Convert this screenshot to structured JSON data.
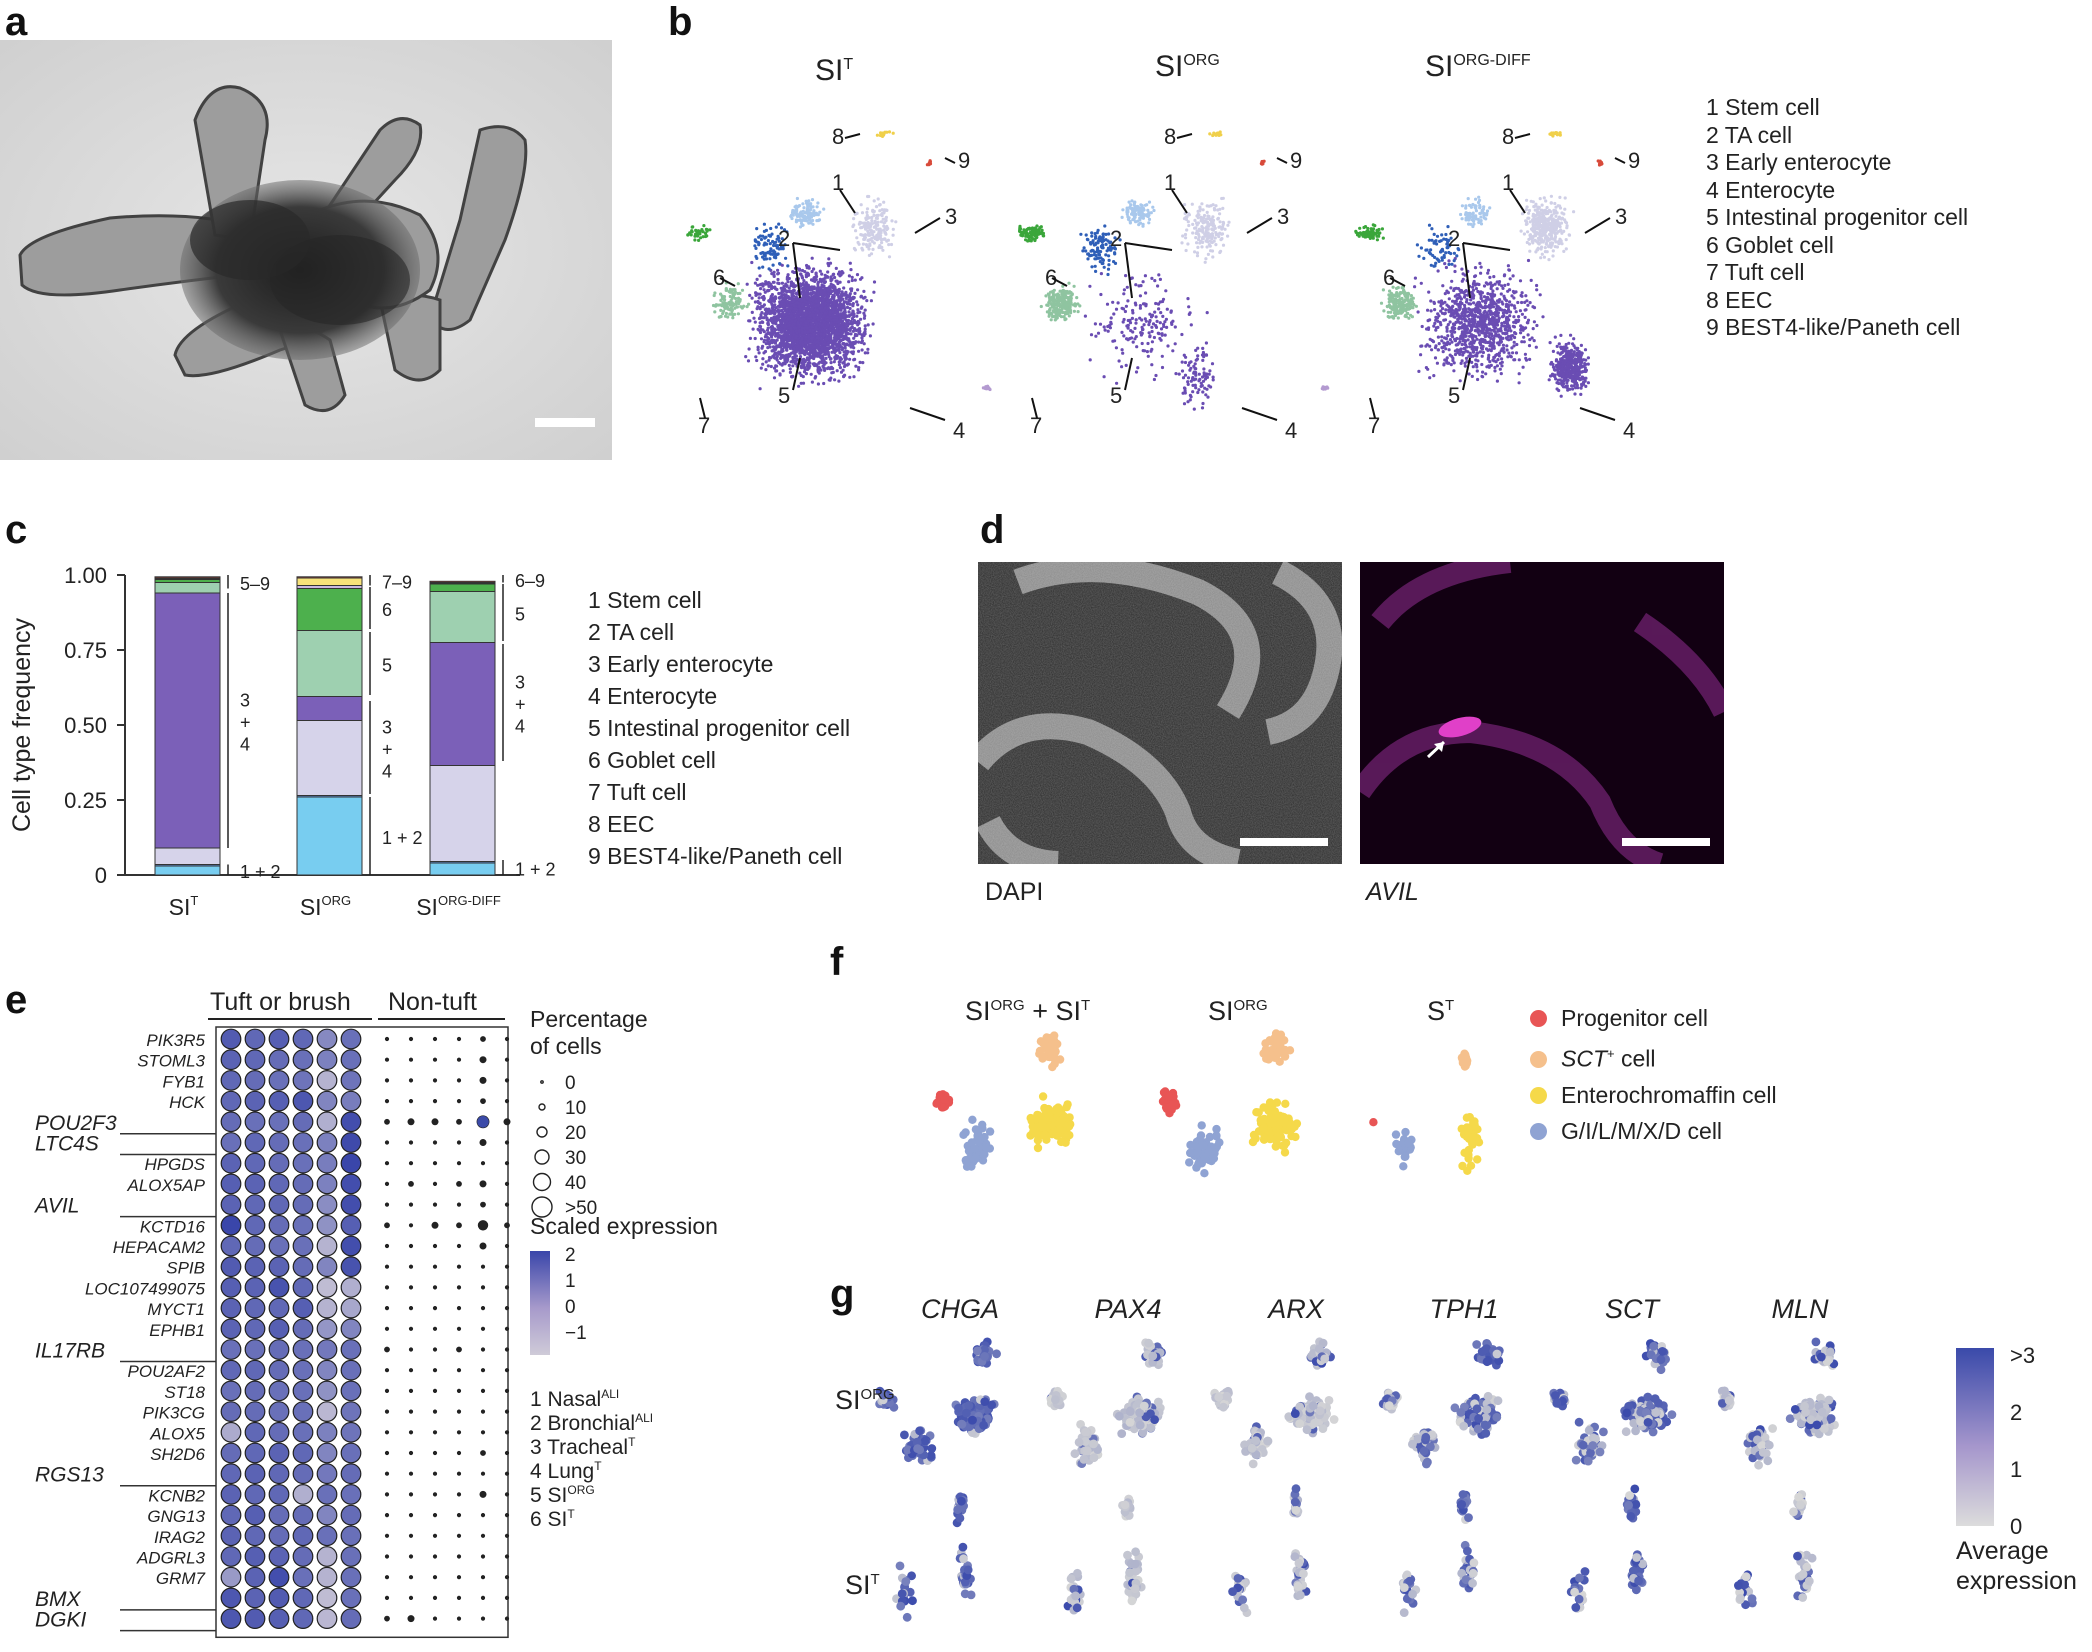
{
  "panels": {
    "a": "a",
    "b": "b",
    "c": "c",
    "d": "d",
    "e": "e",
    "f": "f",
    "g": "g"
  },
  "panel_b": {
    "umaps": [
      {
        "base": "SI",
        "sup": "T",
        "num_labels": [
          "1",
          "2",
          "3",
          "4",
          "5",
          "6",
          "7",
          "8",
          "9"
        ]
      },
      {
        "base": "SI",
        "sup": "ORG",
        "num_labels": [
          "1",
          "2",
          "3",
          "4",
          "5",
          "6",
          "7",
          "8",
          "9"
        ]
      },
      {
        "base": "SI",
        "sup": "ORG-DIFF",
        "num_labels": [
          "1",
          "2",
          "3",
          "4",
          "5",
          "6",
          "7",
          "8",
          "9"
        ]
      }
    ],
    "legend": [
      "1 Stem cell",
      "2 TA cell",
      "3 Early enterocyte",
      "4 Enterocyte",
      "5 Intestinal progenitor cell",
      "6 Goblet cell",
      "7 Tuft cell",
      "8 EEC",
      "9 BEST4-like/Paneth cell"
    ],
    "colors": {
      "stem": "#a9c8ec",
      "ta": "#2f5fb8",
      "early_enterocyte": "#cfcfe6",
      "enterocyte": "#6a4db3",
      "progenitor": "#8fc4a0",
      "goblet": "#3aa63a",
      "tuft": "#b39ad0",
      "eec": "#f0d04a",
      "best4": "#d84a3a"
    }
  },
  "chart_data": [
    {
      "type": "bar",
      "stacked": true,
      "title": "",
      "ylabel": "Cell type frequency",
      "ylim": [
        0,
        1.0
      ],
      "yticks": [
        "0",
        "0.25",
        "0.50",
        "0.75",
        "1.00"
      ],
      "categories": [
        {
          "base": "SI",
          "sup": "T"
        },
        {
          "base": "SI",
          "sup": "ORG"
        },
        {
          "base": "SI",
          "sup": "ORG-DIFF"
        }
      ],
      "series": [
        {
          "name": "1 Stem cell",
          "color": "#78cdf0",
          "values": [
            0.03,
            0.26,
            0.04
          ]
        },
        {
          "name": "2 TA cell",
          "color": "#5b8fd6",
          "values": [
            0.005,
            0.005,
            0.005
          ]
        },
        {
          "name": "3 Early enterocyte",
          "color": "#d6d3ea",
          "values": [
            0.055,
            0.25,
            0.32
          ]
        },
        {
          "name": "4 Enterocyte",
          "color": "#7b60b8",
          "values": [
            0.85,
            0.08,
            0.41
          ]
        },
        {
          "name": "5 Intestinal progenitor cell",
          "color": "#9ed0b0",
          "values": [
            0.035,
            0.22,
            0.17
          ]
        },
        {
          "name": "6 Goblet cell",
          "color": "#4db04d",
          "values": [
            0.01,
            0.14,
            0.025
          ]
        },
        {
          "name": "7 Tuft cell",
          "color": "#c9b8e0",
          "values": [
            0.003,
            0.01,
            0.003
          ]
        },
        {
          "name": "8 EEC",
          "color": "#f7e27a",
          "values": [
            0.002,
            0.025,
            0.002
          ]
        },
        {
          "name": "9 BEST4-like/Paneth cell",
          "color": "#d84a3a",
          "values": [
            0.004,
            0.004,
            0.004
          ]
        }
      ],
      "bracket_labels": [
        [
          "5–9",
          "3\n+\n4",
          "1 + 2"
        ],
        [
          "7–9",
          "6",
          "5",
          "3\n+\n4",
          "1 + 2"
        ],
        [
          "6–9",
          "5",
          "3\n+\n4",
          "1 + 2"
        ]
      ],
      "legend": [
        "1 Stem cell",
        "2 TA cell",
        "3 Early enterocyte",
        "4 Enterocyte",
        "5 Intestinal progenitor cell",
        "6 Goblet cell",
        "7 Tuft cell",
        "8 EEC",
        "9 BEST4-like/Paneth cell"
      ]
    },
    {
      "type": "heatmap",
      "title": "",
      "group_headers": [
        "Tuft or brush",
        "Non-tuft"
      ],
      "genes": [
        "PIK3R5",
        "STOML3",
        "FYB1",
        "HCK",
        "POU2F3",
        "LTC4S",
        "HPGDS",
        "ALOX5AP",
        "AVIL",
        "KCTD16",
        "HEPACAM2",
        "SPIB",
        "LOC107499075",
        "MYCT1",
        "EPHB1",
        "IL17RB",
        "POU2AF2",
        "ST18",
        "PIK3CG",
        "ALOX5",
        "SH2D6",
        "RGS13",
        "KCNB2",
        "GNG13",
        "IRAG2",
        "ADGRL3",
        "GRM7",
        "BMX",
        "DGKI"
      ],
      "gene_labels_outer": [
        "POU2F3",
        "LTC4S",
        "AVIL",
        "IL17RB",
        "RGS13",
        "BMX",
        "DGKI"
      ],
      "columns_tuft": [
        "1",
        "2",
        "3",
        "4",
        "5",
        "6"
      ],
      "columns_nontuft": [
        "1",
        "2",
        "3",
        "4",
        "5",
        "6"
      ],
      "size_legend_title": "Percentage\nof cells",
      "size_legend": [
        "0",
        "10",
        "20",
        "30",
        "40",
        ">50"
      ],
      "color_legend_title": "Scaled expression",
      "color_legend_ticks": [
        "2",
        "1",
        "0",
        "−1"
      ],
      "sample_legend": [
        {
          "base": "1 Nasal",
          "sup": "ALI"
        },
        {
          "base": "2 Bronchial",
          "sup": "ALI"
        },
        {
          "base": "3 Tracheal",
          "sup": "T"
        },
        {
          "base": "4 Lung",
          "sup": "T"
        },
        {
          "base": "5 SI",
          "sup": "ORG"
        },
        {
          "base": "6 SI",
          "sup": "T"
        }
      ],
      "tuft_expression": [
        [
          1.5,
          1.2,
          1.4,
          1.2,
          0.4,
          1.0
        ],
        [
          1.3,
          1.2,
          1.1,
          1.0,
          0.6,
          1.0
        ],
        [
          1.2,
          1.1,
          1.0,
          0.9,
          -0.6,
          0.9
        ],
        [
          1.2,
          1.3,
          1.4,
          1.6,
          0.5,
          0.7
        ],
        [
          1.1,
          1.0,
          1.0,
          1.1,
          -0.5,
          1.8
        ],
        [
          1.0,
          1.2,
          1.1,
          1.0,
          0.6,
          1.9
        ],
        [
          1.3,
          1.2,
          1.1,
          1.0,
          0.7,
          2.0
        ],
        [
          1.4,
          1.3,
          1.2,
          1.1,
          0.6,
          1.8
        ],
        [
          1.3,
          1.2,
          1.2,
          1.1,
          0.3,
          1.8
        ],
        [
          2.0,
          1.2,
          1.1,
          1.0,
          0.2,
          1.4
        ],
        [
          1.2,
          1.1,
          1.0,
          1.0,
          -0.6,
          1.8
        ],
        [
          1.5,
          1.3,
          1.3,
          1.1,
          0.5,
          1.7
        ],
        [
          1.4,
          1.3,
          1.7,
          1.2,
          -0.8,
          -0.5
        ],
        [
          1.3,
          1.2,
          1.2,
          1.4,
          -0.6,
          -0.3
        ],
        [
          1.3,
          1.2,
          1.4,
          1.1,
          0.1,
          0.5
        ],
        [
          1.0,
          1.0,
          1.1,
          1.0,
          0.8,
          1.0
        ],
        [
          1.2,
          1.2,
          1.1,
          1.0,
          0.5,
          1.0
        ],
        [
          1.0,
          1.1,
          1.0,
          1.0,
          0.2,
          1.0
        ],
        [
          1.1,
          1.1,
          1.0,
          1.0,
          -0.7,
          0.9
        ],
        [
          -0.4,
          1.2,
          1.1,
          1.0,
          0.6,
          0.9
        ],
        [
          1.1,
          1.2,
          1.3,
          1.2,
          0.5,
          1.0
        ],
        [
          1.2,
          1.3,
          1.2,
          1.1,
          0.8,
          1.1
        ],
        [
          1.3,
          1.2,
          1.2,
          -0.5,
          1.0,
          1.0
        ],
        [
          1.2,
          1.4,
          1.1,
          1.1,
          0.5,
          1.1
        ],
        [
          1.3,
          1.2,
          1.1,
          1.2,
          1.0,
          1.0
        ],
        [
          1.2,
          1.4,
          1.3,
          1.1,
          -0.6,
          1.0
        ],
        [
          0.0,
          1.3,
          1.8,
          1.0,
          -0.6,
          1.0
        ],
        [
          1.6,
          1.3,
          1.5,
          1.2,
          -0.8,
          1.0
        ],
        [
          1.6,
          1.5,
          1.4,
          1.2,
          -0.7,
          1.1
        ]
      ],
      "nontuft_pct": [
        [
          2,
          2,
          2,
          2,
          4,
          2
        ],
        [
          2,
          2,
          2,
          2,
          6,
          2
        ],
        [
          2,
          2,
          2,
          2,
          6,
          2
        ],
        [
          2,
          2,
          2,
          2,
          4,
          2
        ],
        [
          4,
          6,
          6,
          4,
          22,
          6
        ],
        [
          2,
          2,
          2,
          2,
          6,
          2
        ],
        [
          2,
          2,
          2,
          2,
          2,
          2
        ],
        [
          2,
          4,
          2,
          4,
          6,
          2
        ],
        [
          2,
          2,
          2,
          2,
          4,
          2
        ],
        [
          4,
          2,
          6,
          4,
          14,
          4
        ],
        [
          2,
          2,
          2,
          2,
          6,
          2
        ],
        [
          2,
          2,
          2,
          2,
          2,
          2
        ],
        [
          2,
          2,
          2,
          2,
          2,
          2
        ],
        [
          2,
          2,
          2,
          2,
          2,
          2
        ],
        [
          2,
          2,
          2,
          2,
          2,
          2
        ],
        [
          4,
          2,
          2,
          4,
          2,
          2
        ],
        [
          2,
          2,
          2,
          2,
          2,
          2
        ],
        [
          2,
          2,
          2,
          2,
          2,
          2
        ],
        [
          2,
          2,
          2,
          2,
          2,
          2
        ],
        [
          2,
          2,
          2,
          2,
          2,
          2
        ],
        [
          2,
          2,
          2,
          2,
          4,
          2
        ],
        [
          2,
          2,
          2,
          2,
          2,
          2
        ],
        [
          2,
          2,
          2,
          2,
          6,
          2
        ],
        [
          2,
          2,
          2,
          2,
          2,
          2
        ],
        [
          2,
          2,
          2,
          2,
          2,
          2
        ],
        [
          2,
          2,
          2,
          2,
          2,
          2
        ],
        [
          2,
          2,
          2,
          2,
          2,
          2
        ],
        [
          2,
          2,
          2,
          2,
          2,
          2
        ],
        [
          4,
          6,
          2,
          2,
          2,
          2
        ]
      ]
    }
  ],
  "panel_d": {
    "left_caption": "DAPI",
    "right_caption": "AVIL"
  },
  "panel_f": {
    "titles": [
      {
        "base": "SI",
        "sup": "ORG",
        "mid": " + SI",
        "sup2": "T"
      },
      {
        "base": "SI",
        "sup": "ORG",
        "mid": "",
        "sup2": ""
      },
      {
        "base": "S",
        "sup": "T",
        "mid": "",
        "sup2": ""
      }
    ],
    "legend": [
      {
        "label": "Progenitor cell",
        "sup": "",
        "color": "#e85555"
      },
      {
        "label": "SCT",
        "sup": "+",
        "suffix": " cell",
        "color": "#f5c08c"
      },
      {
        "label": "Enterochromaffin cell",
        "sup": "",
        "color": "#f5d94a"
      },
      {
        "label": "G/I/L/M/X/D cell",
        "sup": "",
        "color": "#8fa3d3"
      }
    ]
  },
  "panel_g": {
    "genes": [
      "CHGA",
      "PAX4",
      "ARX",
      "TPH1",
      "SCT",
      "MLN"
    ],
    "rows": [
      {
        "base": "SI",
        "sup": "ORG"
      },
      {
        "base": "SI",
        "sup": "T"
      }
    ],
    "colorbar_ticks": [
      ">3",
      "2",
      "1",
      "0"
    ],
    "colorbar_title": "Average\nexpression"
  }
}
